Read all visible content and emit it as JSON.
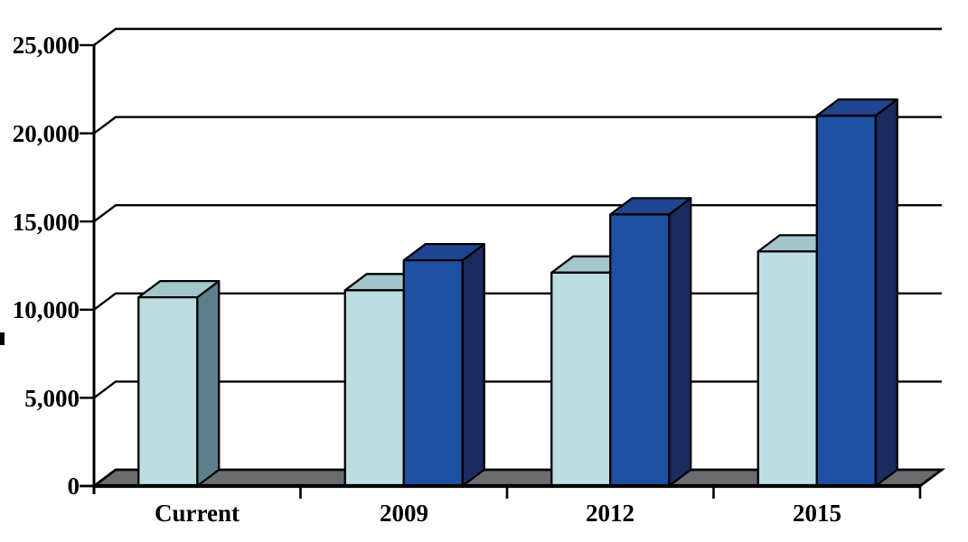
{
  "chart_data": {
    "type": "bar",
    "style": "3d-clustered-column",
    "categories": [
      "Current",
      "2009",
      "2012",
      "2015"
    ],
    "series": [
      {
        "name": "light-blue",
        "values": [
          10700,
          11100,
          12100,
          13300
        ],
        "colors": {
          "front": "#bcdee3",
          "top": "#a3c6cb",
          "side": "#5d7f89"
        }
      },
      {
        "name": "dark-blue",
        "values": [
          null,
          12800,
          15400,
          21000
        ],
        "colors": {
          "front": "#1f50a2",
          "top": "#204590",
          "side": "#1b2a5f"
        }
      }
    ],
    "y_axis": {
      "min": 0,
      "max": 25000,
      "tick_step": 5000,
      "tick_labels": [
        "25,000",
        "20,000",
        "15,000",
        "10,000",
        "5,000",
        "0"
      ]
    },
    "grid": true,
    "legend": "none",
    "floor_color": "#696d70",
    "line_color": "#000000",
    "background": "#ffffff"
  }
}
